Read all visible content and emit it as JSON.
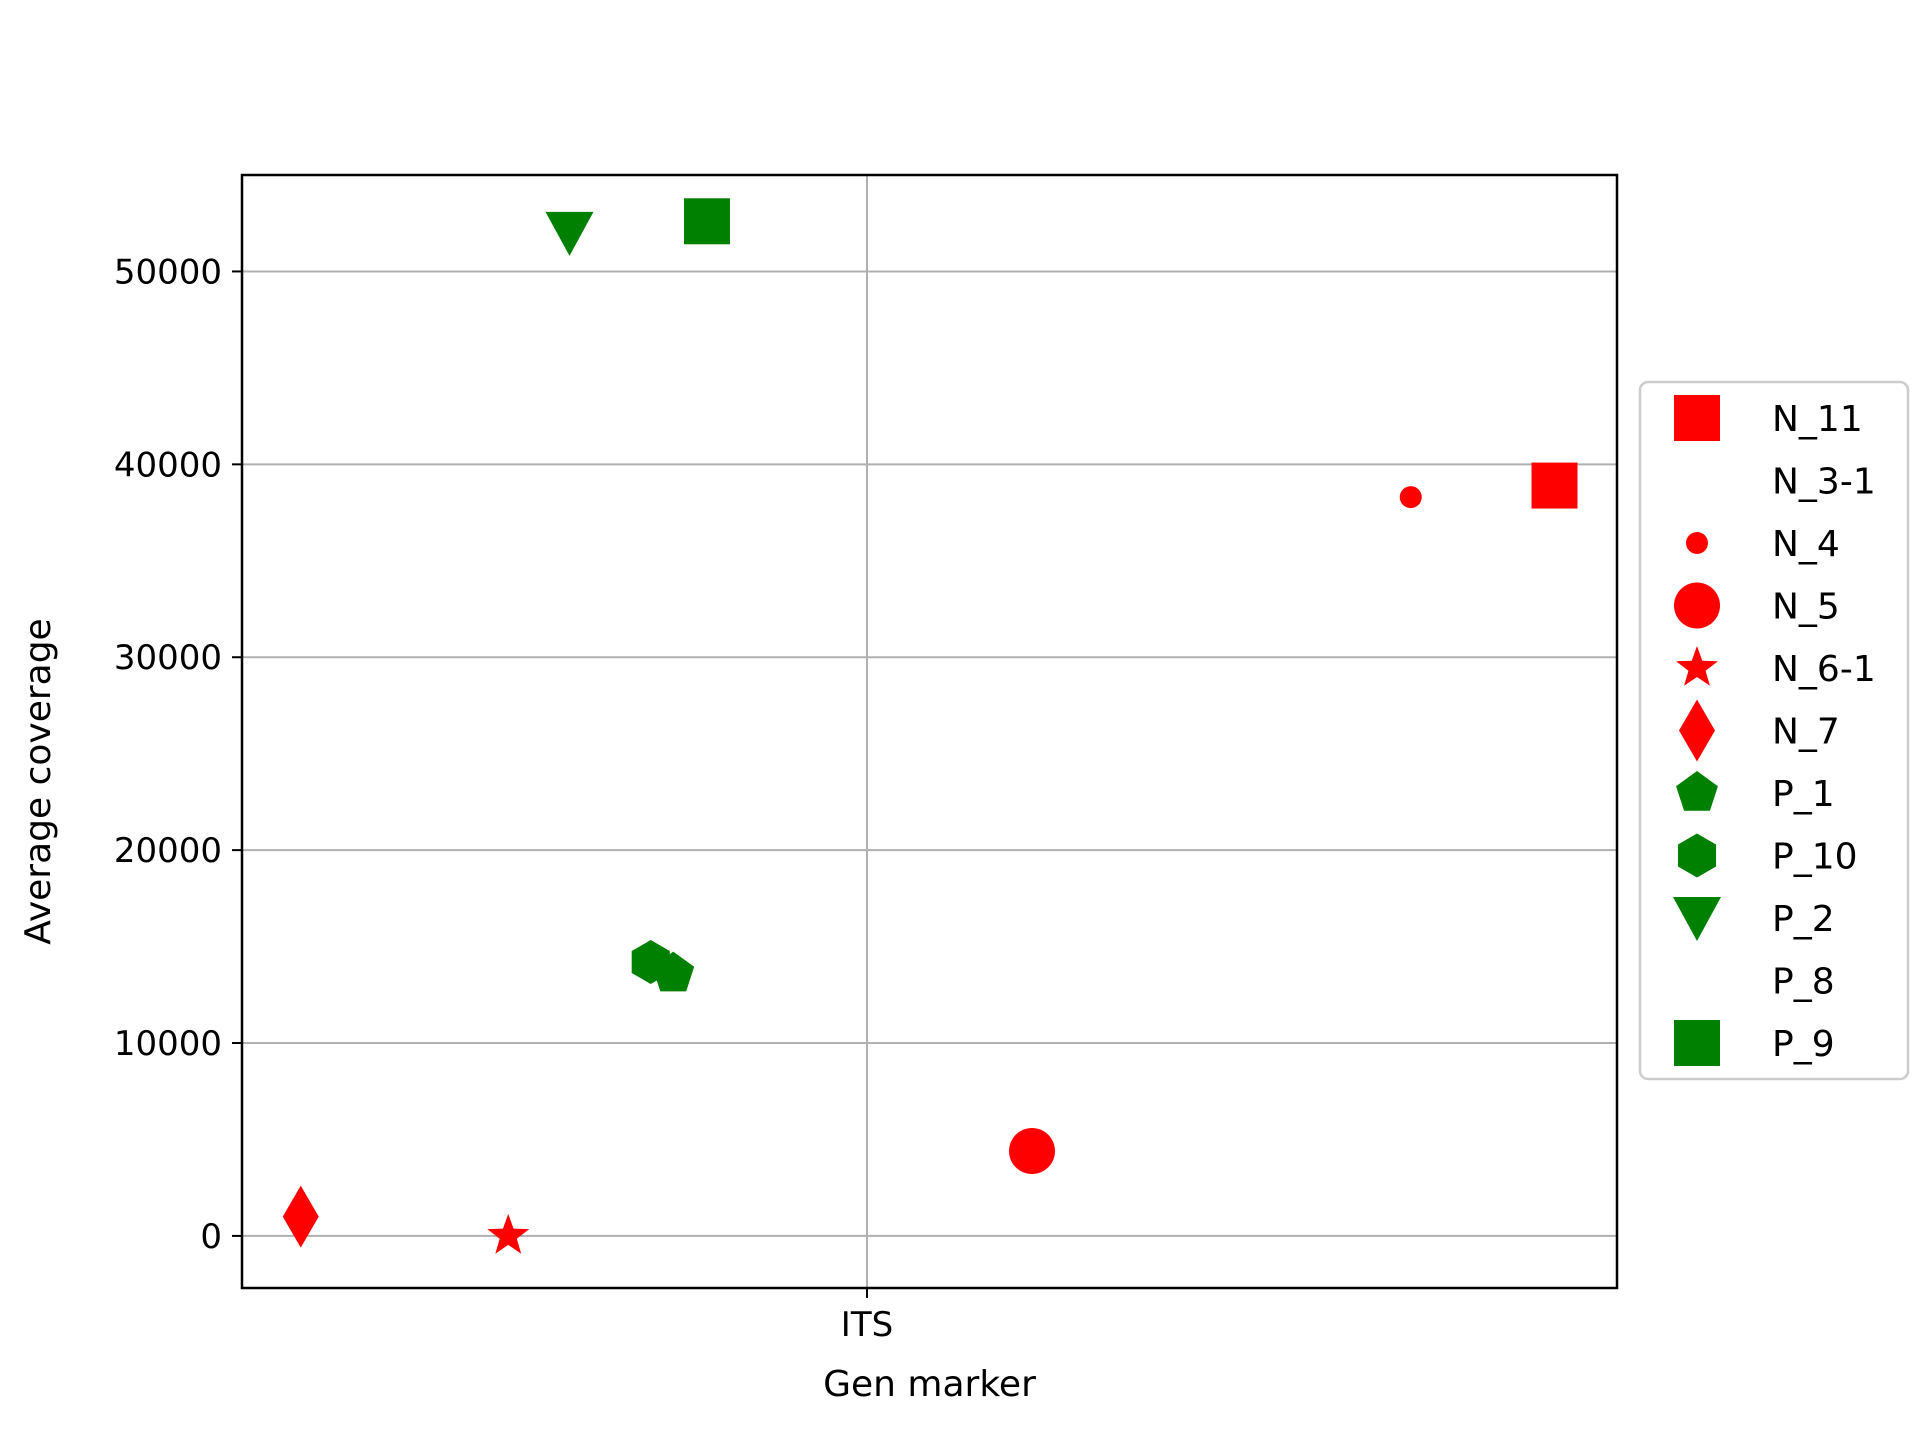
{
  "chart_data": {
    "type": "scatter",
    "title": "",
    "xlabel": "Gen marker",
    "ylabel": "Average coverage",
    "categories": [
      "ITS"
    ],
    "ylim": [
      -2700,
      55000
    ],
    "xlim": [
      -0.5,
      0.6
    ],
    "yticks": [
      0,
      10000,
      20000,
      30000,
      40000,
      50000
    ],
    "grid": true,
    "legend_position": "right",
    "series": [
      {
        "name": "N_11",
        "marker": "square",
        "color": "#ff0000",
        "size": "large",
        "x": 0.55,
        "y": 38900
      },
      {
        "name": "N_3-1",
        "marker": "none",
        "color": "#ff0000",
        "size": "none",
        "x": null,
        "y": null
      },
      {
        "name": "N_4",
        "marker": "circle-small",
        "color": "#ff0000",
        "size": "small",
        "x": 0.435,
        "y": 38300
      },
      {
        "name": "N_5",
        "marker": "circle",
        "color": "#ff0000",
        "size": "large",
        "x": 0.132,
        "y": 4400
      },
      {
        "name": "N_6-1",
        "marker": "star",
        "color": "#ff0000",
        "size": "large",
        "x": -0.287,
        "y": 0
      },
      {
        "name": "N_7",
        "marker": "diamond",
        "color": "#ff0000",
        "size": "large",
        "x": -0.453,
        "y": 1000
      },
      {
        "name": "P_1",
        "marker": "pentagon",
        "color": "#008000",
        "size": "large",
        "x": -0.155,
        "y": 13600
      },
      {
        "name": "P_10",
        "marker": "hexagon",
        "color": "#008000",
        "size": "large",
        "x": -0.173,
        "y": 14200
      },
      {
        "name": "P_2",
        "marker": "triangle-down",
        "color": "#008000",
        "size": "large",
        "x": -0.238,
        "y": 52000
      },
      {
        "name": "P_8",
        "marker": "none",
        "color": "#008000",
        "size": "none",
        "x": null,
        "y": null
      },
      {
        "name": "P_9",
        "marker": "square",
        "color": "#008000",
        "size": "large",
        "x": -0.128,
        "y": 52600
      }
    ]
  }
}
